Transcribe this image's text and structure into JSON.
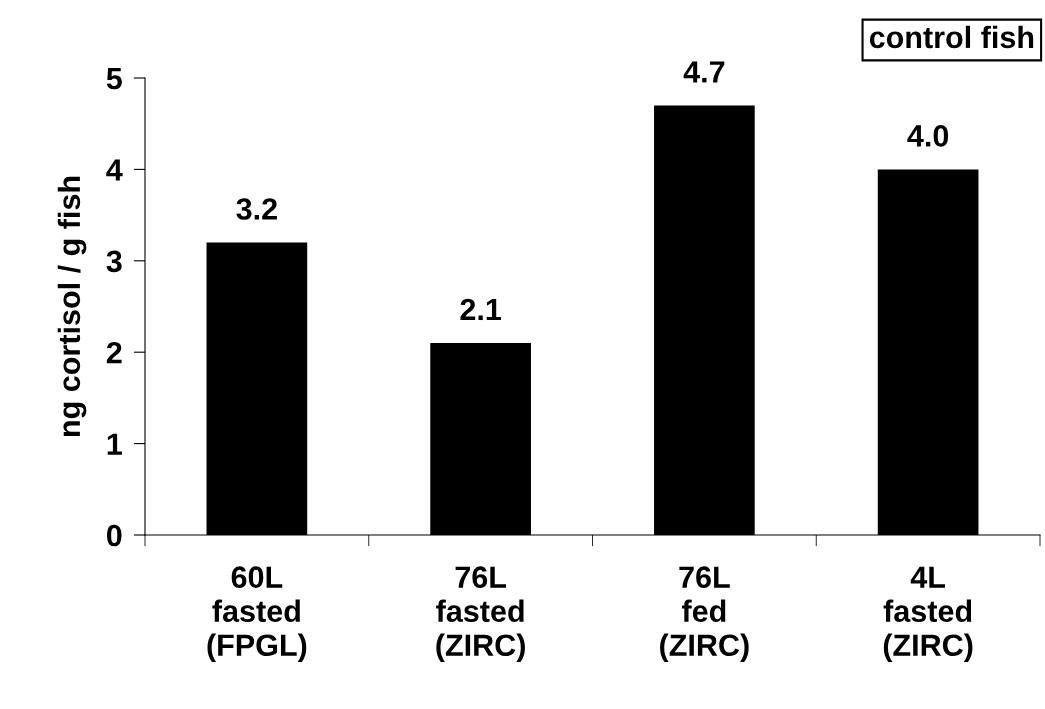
{
  "chart_data": {
    "type": "bar",
    "categories": [
      "60L\nfasted\n(FPGL)",
      "76L\nfasted\n(ZIRC)",
      "76L\nfed\n(ZIRC)",
      "4L\nfasted\n(ZIRC)"
    ],
    "values": [
      3.2,
      2.1,
      4.7,
      4.0
    ],
    "color": "#000000",
    "ylabel": "ng cortisol / g fish",
    "annotations": [
      "control fish"
    ],
    "ylim": [
      0,
      5
    ],
    "yticks": [
      0,
      1,
      2,
      3,
      4,
      5
    ],
    "value_labels": [
      "3.2",
      "2.1",
      "4.7",
      "4.0"
    ],
    "grid": false,
    "legend": false
  }
}
